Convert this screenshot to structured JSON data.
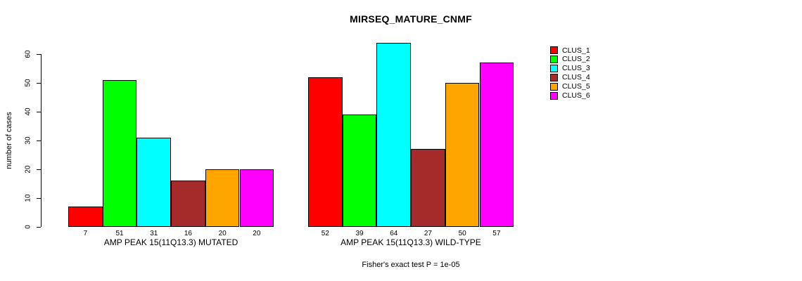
{
  "chart_data": {
    "type": "bar",
    "title": "MIRSEQ_MATURE_CNMF",
    "ylabel": "number of cases",
    "xlabel": "",
    "ylim": [
      0,
      64
    ],
    "yticks": [
      0,
      10,
      20,
      30,
      40,
      50,
      60
    ],
    "grid": false,
    "legend_position": "right",
    "bar_value_labels": true,
    "categories": [
      "AMP PEAK 15(11Q13.3) MUTATED",
      "AMP PEAK 15(11Q13.3) WILD-TYPE"
    ],
    "series": [
      {
        "name": "CLUS_1",
        "color": "#FF0000",
        "values": [
          7,
          52
        ]
      },
      {
        "name": "CLUS_2",
        "color": "#00FF00",
        "values": [
          51,
          39
        ]
      },
      {
        "name": "CLUS_3",
        "color": "#00FFFF",
        "values": [
          31,
          64
        ]
      },
      {
        "name": "CLUS_4",
        "color": "#A52A2A",
        "values": [
          16,
          27
        ]
      },
      {
        "name": "CLUS_5",
        "color": "#FFA500",
        "values": [
          20,
          50
        ]
      },
      {
        "name": "CLUS_6",
        "color": "#FF00FF",
        "values": [
          20,
          57
        ]
      }
    ],
    "footnote": "Fisher's exact test P = 1e-05"
  }
}
